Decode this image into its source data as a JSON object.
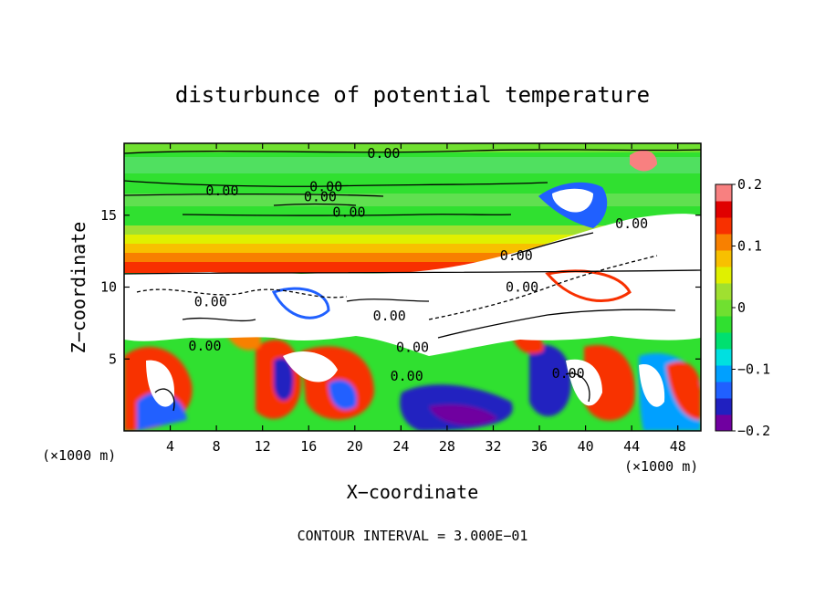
{
  "chart_data": {
    "type": "heatmap",
    "title": "disturbunce of potential temperature",
    "xlabel": "X−coordinate",
    "ylabel": "Z−coordinate",
    "x_unit_left": "(×1000 m)",
    "x_unit_right": "(×1000 m)",
    "footer": "CONTOUR INTERVAL = 3.000E−01",
    "xlim": [
      0,
      50
    ],
    "ylim": [
      0,
      20
    ],
    "x_ticks": [
      4,
      8,
      12,
      16,
      20,
      24,
      28,
      32,
      36,
      40,
      44,
      48
    ],
    "x_tick_labels": [
      "4",
      "8",
      "12",
      "16",
      "20",
      "24",
      "28",
      "32",
      "36",
      "40",
      "44",
      "48"
    ],
    "y_ticks": [
      5,
      10,
      15
    ],
    "y_tick_labels": [
      "5",
      "10",
      "15"
    ],
    "colorbar": {
      "range": [
        -0.2,
        0.2
      ],
      "tick_labels": [
        "0.2",
        "0.1",
        "0",
        "−0.1",
        "−0.2"
      ],
      "tick_values": [
        0.2,
        0.1,
        0,
        -0.1,
        -0.2
      ],
      "colors": [
        "#7000a0",
        "#2020c0",
        "#2060ff",
        "#00a0ff",
        "#00e0e0",
        "#00e070",
        "#30e030",
        "#70e030",
        "#a0e030",
        "#e0f000",
        "#f8c000",
        "#f88000",
        "#f83000",
        "#e00000",
        "#f88080"
      ]
    },
    "contour_labels": [
      {
        "x": 22.5,
        "y": 19.3,
        "text": "0.00"
      },
      {
        "x": 8.5,
        "y": 16.7,
        "text": "0.00"
      },
      {
        "x": 17.5,
        "y": 17.0,
        "text": "0.00"
      },
      {
        "x": 17.0,
        "y": 16.3,
        "text": "0.00"
      },
      {
        "x": 19.5,
        "y": 15.2,
        "text": "0.00"
      },
      {
        "x": 44.0,
        "y": 14.4,
        "text": "0.00"
      },
      {
        "x": 34.0,
        "y": 12.2,
        "text": "0.00"
      },
      {
        "x": 34.5,
        "y": 10.0,
        "text": "0.00"
      },
      {
        "x": 7.5,
        "y": 9.0,
        "text": "0.00"
      },
      {
        "x": 23.0,
        "y": 8.0,
        "text": "0.00"
      },
      {
        "x": 7.0,
        "y": 5.9,
        "text": "0.00"
      },
      {
        "x": 25.0,
        "y": 5.8,
        "text": "0.00"
      },
      {
        "x": 24.5,
        "y": 3.8,
        "text": "0.00"
      },
      {
        "x": 38.5,
        "y": 4.0,
        "text": "0.00"
      }
    ]
  }
}
